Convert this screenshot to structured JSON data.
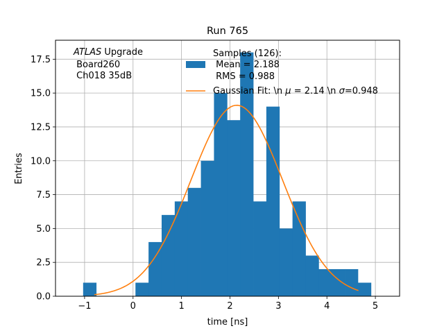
{
  "chart_data": {
    "type": "bar",
    "title": "Run 765",
    "xlabel": "time [ns]",
    "ylabel": "Entries",
    "xlim": [
      -1.6,
      5.5
    ],
    "ylim": [
      0,
      18.9
    ],
    "xticks": [
      -1,
      0,
      1,
      2,
      3,
      4,
      5
    ],
    "yticks": [
      0.0,
      2.5,
      5.0,
      7.5,
      10.0,
      12.5,
      15.0,
      17.5
    ],
    "ytick_labels": [
      "0.0",
      "2.5",
      "5.0",
      "7.5",
      "10.0",
      "12.5",
      "15.0",
      "17.5"
    ],
    "grid": true,
    "bin_width": 0.27,
    "bins": [
      {
        "left": -1.03,
        "count": 1
      },
      {
        "left": 0.05,
        "count": 1
      },
      {
        "left": 0.32,
        "count": 4
      },
      {
        "left": 0.59,
        "count": 6
      },
      {
        "left": 0.86,
        "count": 7
      },
      {
        "left": 1.13,
        "count": 8
      },
      {
        "left": 1.4,
        "count": 10
      },
      {
        "left": 1.67,
        "count": 15
      },
      {
        "left": 1.94,
        "count": 13
      },
      {
        "left": 2.21,
        "count": 18
      },
      {
        "left": 2.48,
        "count": 7
      },
      {
        "left": 2.75,
        "count": 14
      },
      {
        "left": 3.02,
        "count": 5
      },
      {
        "left": 3.29,
        "count": 7
      },
      {
        "left": 3.56,
        "count": 3
      },
      {
        "left": 3.83,
        "count": 2
      },
      {
        "left": 4.1,
        "count": 2
      },
      {
        "left": 4.37,
        "count": 2
      },
      {
        "left": 4.64,
        "count": 1
      }
    ],
    "fit": {
      "name": "Gaussian Fit",
      "amplitude": 14.1,
      "mu": 2.14,
      "sigma": 0.948,
      "x_range": [
        -0.8,
        4.65
      ]
    },
    "colors": {
      "hist": "#1f77b4",
      "fit": "#ff7f0e",
      "grid": "#b0b0b0"
    },
    "legend": {
      "placement": "top-center",
      "hist_label_lines": [
        "Samples (126):",
        " Mean = 2.188",
        " RMS = 0.988"
      ],
      "fit_label_prefix": "Gaussian Fit: \\n ",
      "fit_mu_symbol": "μ",
      "fit_mu_value": " = 2.14 \\n ",
      "fit_sigma_symbol": "σ",
      "fit_sigma_value": "=0.948"
    },
    "annotation": {
      "placement": "top-left",
      "italic_word": "ATLAS",
      "word": " Upgrade",
      "line2": " Board260",
      "line3": " Ch018 35dB"
    }
  }
}
